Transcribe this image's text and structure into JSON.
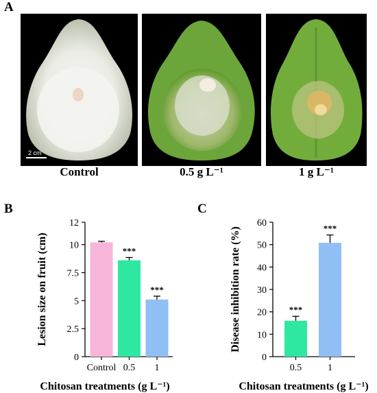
{
  "panel_a": {
    "letter": "A",
    "photos": [
      {
        "label": "Control",
        "scale_bar_text": "2 cm",
        "lesion": "white mycelium covering fruit"
      },
      {
        "label": "0.5 g L⁻¹",
        "scale_bar_text": "",
        "lesion": "moderate lesion"
      },
      {
        "label": "1 g L⁻¹",
        "scale_bar_text": "",
        "lesion": "small lesion"
      }
    ],
    "colors": {
      "control_fruit": "#d6d9cf",
      "treated_fruit": "#6fa83a",
      "mycelium": "#f2f2ee"
    }
  },
  "chart_data": [
    {
      "panel": "B",
      "type": "bar",
      "categories": [
        "Control",
        "0.5",
        "1"
      ],
      "values": [
        10.2,
        8.6,
        5.1
      ],
      "errors": [
        0.1,
        0.25,
        0.3
      ],
      "significance": [
        "",
        "***",
        "***"
      ],
      "colors": [
        "#f7b6d9",
        "#2ee8a2",
        "#8fbff5"
      ],
      "ylim": [
        0,
        12
      ],
      "yticks": [
        "0",
        "2.5",
        "5",
        "7.5",
        "10",
        "12"
      ],
      "ytick_values": [
        0,
        2.5,
        5,
        7.5,
        10,
        12
      ],
      "xlabel": "Chitosan treatments (g L⁻¹)",
      "ylabel": "Lesion size on fruit (cm)"
    },
    {
      "panel": "C",
      "type": "bar",
      "categories": [
        "0.5",
        "1"
      ],
      "values": [
        16,
        50.8
      ],
      "errors": [
        2,
        3.5
      ],
      "significance": [
        "***",
        "***"
      ],
      "colors": [
        "#2ee8a2",
        "#8fbff5"
      ],
      "ylim": [
        0,
        60
      ],
      "yticks": [
        "0",
        "10",
        "20",
        "30",
        "40",
        "50",
        "60"
      ],
      "ytick_values": [
        0,
        10,
        20,
        30,
        40,
        50,
        60
      ],
      "xlabel": "Chitosan treatments (g L⁻¹)",
      "ylabel": "Disease inhibition rate (%)"
    }
  ]
}
